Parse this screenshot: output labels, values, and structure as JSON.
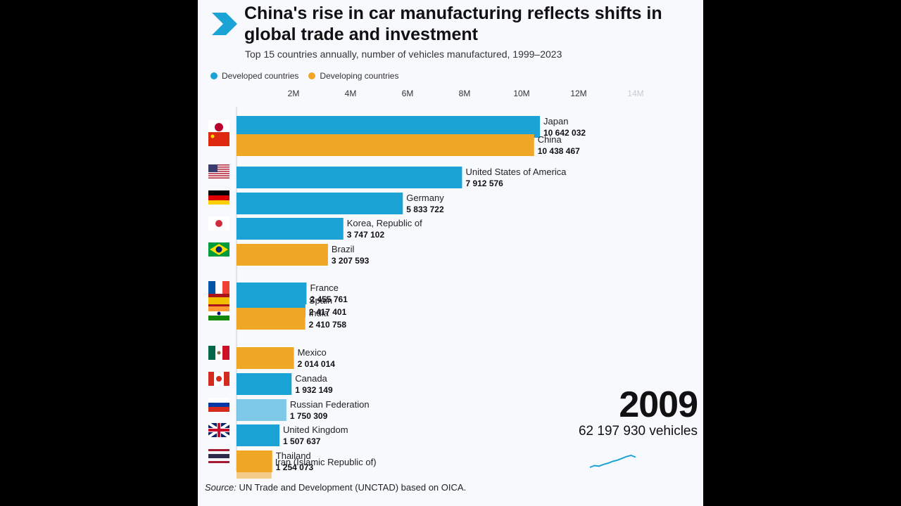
{
  "title": "China's rise in car manufacturing reflects shifts in global trade and investment",
  "subtitle": "Top 15 countries annually, number of vehicles manufactured, 1999–2023",
  "legend": [
    {
      "label": "Developed countries",
      "color": "#1ba3d6"
    },
    {
      "label": "Developing countries",
      "color": "#f0a726"
    }
  ],
  "year": "2009",
  "total_label": "62 197 930 vehicles",
  "source_prefix": "Source:",
  "source_text": "UN Trade and Development (UNCTAD) based on OICA.",
  "colors": {
    "developed": "#1ba3d6",
    "developing": "#f0a726",
    "sparkline": "#1ba3d6"
  },
  "chart_data": {
    "type": "bar",
    "orientation": "horizontal",
    "x_ticks": [
      "2M",
      "4M",
      "6M",
      "8M",
      "10M",
      "12M",
      "14M"
    ],
    "xlim": [
      0,
      14000000
    ],
    "grid": false,
    "legend_position": "top-left",
    "series": [
      {
        "name": "Developed countries"
      },
      {
        "name": "Developing countries"
      }
    ],
    "bars": [
      {
        "country": "Japan",
        "value": 10642032,
        "value_label": "10 642 032",
        "group": "developed",
        "flag": "japan-flag"
      },
      {
        "country": "China",
        "value": 10438467,
        "value_label": "10 438 467",
        "group": "developing",
        "flag": "china-flag"
      },
      {
        "country": "United States of America",
        "value": 7912576,
        "value_label": "7 912 576",
        "group": "developed",
        "flag": "usa-flag"
      },
      {
        "country": "Germany",
        "value": 5833722,
        "value_label": "5 833 722",
        "group": "developed",
        "flag": "germany-flag"
      },
      {
        "country": "Korea, Republic of",
        "value": 3747102,
        "value_label": "3 747 102",
        "group": "developed",
        "flag": "korea-flag"
      },
      {
        "country": "Brazil",
        "value": 3207593,
        "value_label": "3 207 593",
        "group": "developing",
        "flag": "brazil-flag"
      },
      {
        "country": "France",
        "value": 2455761,
        "value_label": "2 455 761",
        "group": "developed",
        "flag": "france-flag"
      },
      {
        "country": "Spain",
        "value": 2417401,
        "value_label": "2 417 401",
        "group": "developed",
        "flag": "spain-flag"
      },
      {
        "country": "India",
        "value": 2410758,
        "value_label": "2 410 758",
        "group": "developing",
        "flag": "india-flag"
      },
      {
        "country": "Mexico",
        "value": 2014014,
        "value_label": "2 014 014",
        "group": "developing",
        "flag": "mexico-flag"
      },
      {
        "country": "Canada",
        "value": 1932149,
        "value_label": "1 932 149",
        "group": "developed",
        "flag": "canada-flag"
      },
      {
        "country": "Russian Federation",
        "value": 1750309,
        "value_label": "1 750 309",
        "group": "developed",
        "flag": "russia-flag"
      },
      {
        "country": "United Kingdom",
        "value": 1507637,
        "value_label": "1 507 637",
        "group": "developed",
        "flag": "uk-flag"
      },
      {
        "country": "Thailand",
        "value": 1254073,
        "value_label": "1 254 073",
        "group": "developing",
        "flag": "thailand-flag"
      },
      {
        "country": "Iran (Islamic Republic of)",
        "value": 1229000,
        "value_label": "",
        "group": "developing",
        "flag": "iran-flag"
      }
    ],
    "sparkline": [
      45,
      48,
      47,
      50,
      52,
      55,
      57,
      60,
      63,
      65,
      62
    ]
  }
}
